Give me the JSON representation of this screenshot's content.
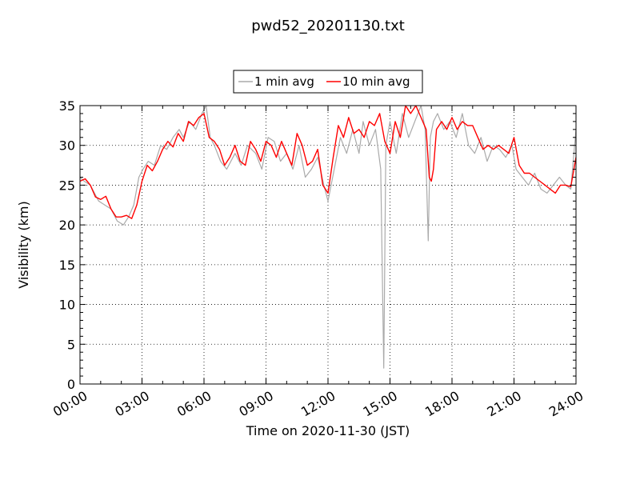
{
  "chart_data": {
    "type": "line",
    "title": "pwd52_20201130.txt",
    "xlabel": "Time on 2020-11-30 (JST)",
    "ylabel": "Visibility (km)",
    "xlim": [
      0,
      24
    ],
    "ylim": [
      0,
      35
    ],
    "x_tick_labels": [
      "00:00",
      "03:00",
      "06:00",
      "09:00",
      "12:00",
      "15:00",
      "18:00",
      "21:00",
      "24:00"
    ],
    "y_tick_labels": [
      "0",
      "5",
      "10",
      "15",
      "20",
      "25",
      "30",
      "35"
    ],
    "grid": true,
    "legend_position": "top-center",
    "colors": {
      "one_min": "#aaaaaa",
      "ten_min": "#ff0000"
    },
    "series": [
      {
        "name": "1 min avg",
        "x_hours": [
          0,
          0.2,
          0.5,
          0.9,
          1.2,
          1.5,
          1.8,
          2.1,
          2.35,
          2.6,
          2.85,
          3.05,
          3.3,
          3.6,
          3.9,
          4.2,
          4.5,
          4.8,
          5.0,
          5.3,
          5.6,
          5.9,
          6.1,
          6.3,
          6.5,
          6.8,
          7.1,
          7.5,
          7.8,
          8.1,
          8.5,
          8.8,
          9.1,
          9.4,
          9.7,
          10.0,
          10.3,
          10.6,
          10.9,
          11.2,
          11.5,
          11.8,
          12.0,
          12.3,
          12.6,
          12.9,
          13.2,
          13.5,
          13.7,
          14.0,
          14.3,
          14.55,
          14.7,
          14.8,
          15.0,
          15.3,
          15.6,
          15.9,
          16.2,
          16.5,
          16.7,
          16.85,
          16.95,
          17.1,
          17.3,
          17.6,
          17.9,
          18.2,
          18.5,
          18.8,
          19.1,
          19.4,
          19.7,
          20.0,
          20.3,
          20.6,
          20.9,
          21.1,
          21.4,
          21.7,
          22.0,
          22.3,
          22.6,
          22.9,
          23.2,
          23.5,
          23.75,
          24.0
        ],
        "values": [
          26,
          25.5,
          25,
          23,
          22.5,
          22,
          20.5,
          20,
          21,
          22.5,
          26,
          27,
          28,
          27.5,
          30,
          29.5,
          31,
          32,
          31,
          33,
          32,
          34,
          35,
          31,
          30,
          28,
          27,
          29,
          27.5,
          30,
          29,
          27,
          31,
          30.5,
          28,
          29,
          27,
          30,
          26,
          27,
          28.5,
          25,
          23,
          27,
          31,
          29,
          32,
          29,
          33,
          30,
          32,
          27,
          2,
          30,
          33,
          29,
          34,
          31,
          33,
          35,
          32,
          18,
          31,
          33,
          34,
          32,
          33,
          31,
          34,
          30,
          29,
          31,
          28,
          30,
          29.5,
          28.5,
          30,
          27,
          26,
          25,
          26.5,
          24.5,
          24,
          25,
          26,
          25,
          24.5,
          32
        ]
      },
      {
        "name": "10 min avg",
        "x_hours": [
          0,
          0.25,
          0.5,
          0.75,
          1.0,
          1.25,
          1.5,
          1.75,
          2.0,
          2.25,
          2.5,
          2.75,
          3.0,
          3.25,
          3.5,
          3.75,
          4.0,
          4.25,
          4.5,
          4.75,
          5.0,
          5.25,
          5.5,
          5.75,
          6.0,
          6.25,
          6.5,
          6.75,
          7.0,
          7.25,
          7.5,
          7.75,
          8.0,
          8.25,
          8.5,
          8.75,
          9.0,
          9.25,
          9.5,
          9.75,
          10.0,
          10.25,
          10.5,
          10.75,
          11.0,
          11.25,
          11.5,
          11.75,
          12.0,
          12.25,
          12.5,
          12.75,
          13.0,
          13.25,
          13.5,
          13.75,
          14.0,
          14.25,
          14.5,
          14.75,
          15.0,
          15.25,
          15.5,
          15.75,
          16.0,
          16.25,
          16.5,
          16.75,
          16.9,
          17.0,
          17.1,
          17.25,
          17.5,
          17.75,
          18.0,
          18.25,
          18.5,
          18.75,
          19.0,
          19.25,
          19.5,
          19.75,
          20.0,
          20.25,
          20.5,
          20.75,
          21.0,
          21.25,
          21.5,
          21.75,
          22.0,
          22.25,
          22.5,
          22.75,
          23.0,
          23.25,
          23.5,
          23.75,
          24.0
        ],
        "values": [
          25.5,
          25.8,
          25,
          23.5,
          23.2,
          23.6,
          22,
          21,
          21,
          21.2,
          20.8,
          22.5,
          25.5,
          27.5,
          26.8,
          28,
          29.5,
          30.5,
          29.8,
          31.5,
          30.5,
          33,
          32.5,
          33.5,
          34,
          31,
          30.5,
          29.5,
          27.5,
          28.5,
          30,
          28,
          27.5,
          30.5,
          29.5,
          28,
          30.5,
          30,
          28.5,
          30.5,
          29,
          27.5,
          31.5,
          30,
          27.5,
          28,
          29.5,
          25,
          24,
          28.5,
          32.5,
          31,
          33.5,
          31.5,
          32,
          31,
          33,
          32.5,
          34,
          30.5,
          29,
          33,
          31,
          35,
          34,
          35,
          33.5,
          32,
          26,
          25.5,
          27,
          32,
          33,
          32,
          33.5,
          32,
          33,
          32.5,
          32.5,
          31,
          29.5,
          30,
          29.5,
          30,
          29.5,
          29,
          31,
          27.5,
          26.5,
          26.5,
          26,
          25.5,
          25,
          24.5,
          24,
          25,
          25,
          24.8,
          28.5
        ]
      }
    ]
  }
}
